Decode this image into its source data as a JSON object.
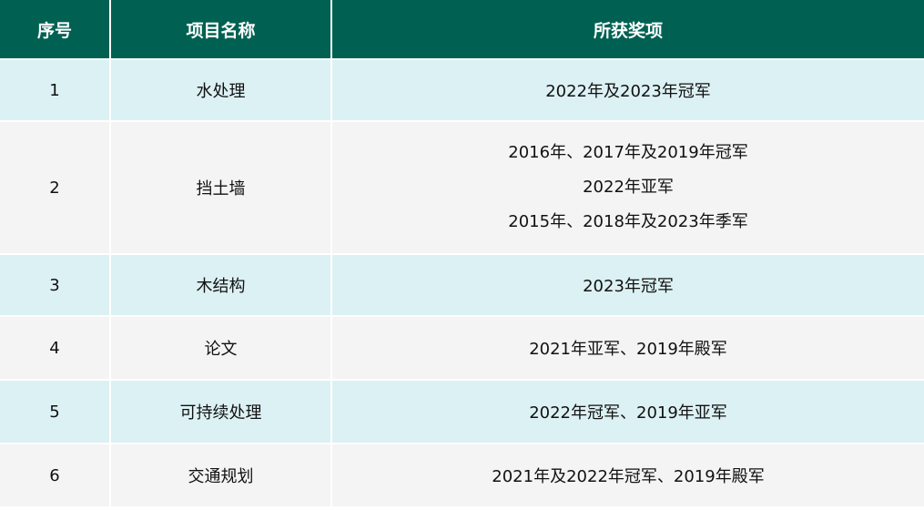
{
  "headers": [
    "序号",
    "项目名称",
    "所获奖项"
  ],
  "rows": [
    {
      "no": "1",
      "project": "水处理",
      "awards": [
        "2022年及2023年冠军"
      ]
    },
    {
      "no": "2",
      "project": "挡土墙",
      "awards": [
        "2016年、2017年及2019年冠军",
        "2022年亚军",
        "2015年、2018年及2023年季军"
      ]
    },
    {
      "no": "3",
      "project": "木结构",
      "awards": [
        "2023年冠军"
      ]
    },
    {
      "no": "4",
      "project": "论文",
      "awards": [
        "2021年亚军、2019年殿军"
      ]
    },
    {
      "no": "5",
      "project": "可持续处理",
      "awards": [
        "2022年冠军、2019年亚军"
      ]
    },
    {
      "no": "6",
      "project": "交通规划",
      "awards": [
        "2021年及2022年冠军、2019年殿军"
      ]
    }
  ],
  "colors": {
    "header": "#006152",
    "row_alt_1": "#dcf1f4",
    "row_alt_2": "#f4f4f4"
  }
}
